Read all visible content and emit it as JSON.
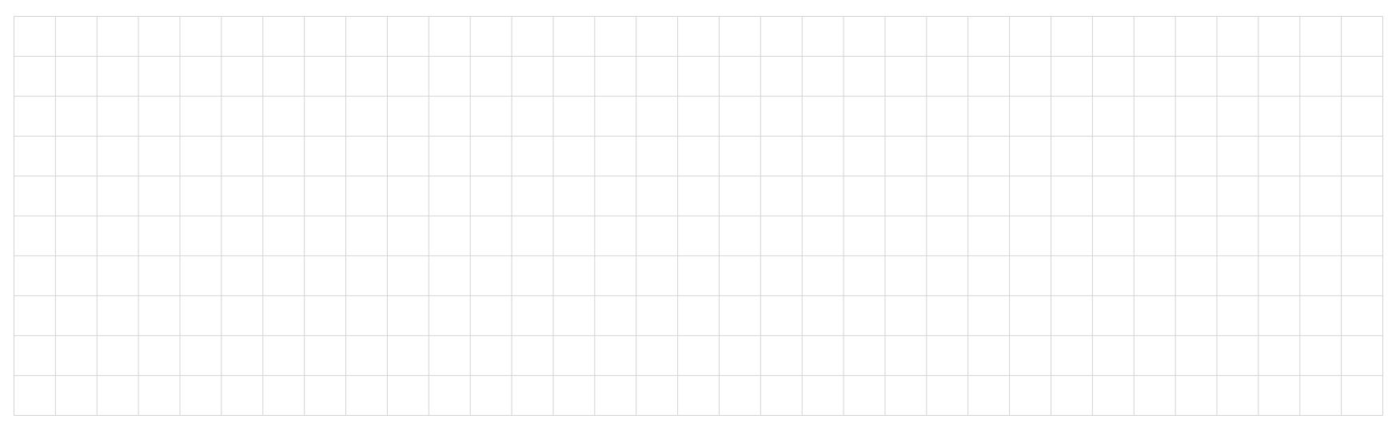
{
  "grid": {
    "columns": 33,
    "rows": 10,
    "line_color": "#d3d3d3",
    "background": "#ffffff"
  }
}
